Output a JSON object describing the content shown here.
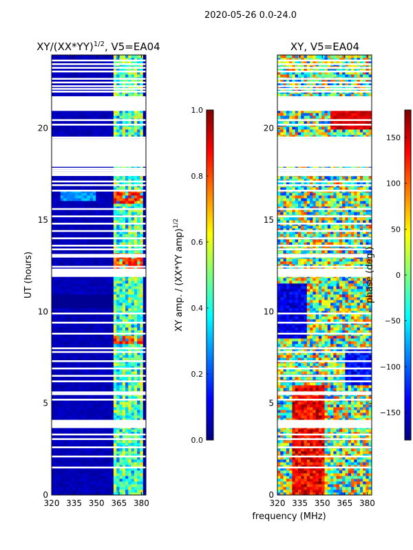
{
  "suptitle": "2020-05-26 0.0-24.0",
  "colors": {
    "jet": [
      "#00007f",
      "#0000ff",
      "#007fff",
      "#00ffff",
      "#7fff7f",
      "#ffff00",
      "#ff7f00",
      "#ff0000",
      "#7f0000"
    ],
    "gap": "#ffffff"
  },
  "shared_xlabel": "frequency (MHz)",
  "chart_data": [
    {
      "type": "heatmap",
      "title_base": "XY/(XX*YY)",
      "title_exp": "1/2",
      "title_suffix": ", V5=EA04",
      "ylabel": "UT (hours)",
      "xlim": [
        320,
        383
      ],
      "ylim": [
        0,
        24
      ],
      "xticks": [
        320,
        335,
        350,
        365,
        380
      ],
      "yticks": [
        0,
        5,
        10,
        15,
        20
      ],
      "colorbar": {
        "label_base": "XY amp. / (XX*YY amp)",
        "label_exp": "1/2",
        "range": [
          0.0,
          1.0
        ],
        "ticks": [
          "0.0",
          "0.2",
          "0.4",
          "0.6",
          "0.8",
          "1.0"
        ],
        "tick_values": [
          0.0,
          0.2,
          0.4,
          0.6,
          0.8,
          1.0
        ]
      },
      "pattern": "mostly near 0 below 362 MHz; bright vertical channels 362-382 MHz with values 0.3-0.7; hotspots near 16.3, 12.7 and 8.5 h"
    },
    {
      "type": "heatmap",
      "title": "XY, V5=EA04",
      "xlim": [
        320,
        383
      ],
      "ylim": [
        0,
        24
      ],
      "xticks": [
        320,
        335,
        350,
        365,
        380
      ],
      "yticks": [
        0,
        5,
        10,
        15,
        20
      ],
      "colorbar": {
        "label": "phase (deg.)",
        "range": [
          -180,
          180
        ],
        "ticks": [
          "−150",
          "−100",
          "−50",
          "0",
          "50",
          "100",
          "150"
        ],
        "tick_values": [
          -150,
          -100,
          -50,
          0,
          50,
          100,
          150
        ]
      },
      "pattern": "noisy phase; warm (≈+150) band 330-350 MHz below 6 h; cool blues 320-340 MHz near 9-11 h"
    }
  ],
  "flagged_hours": [
    1.5,
    2.1,
    2.6,
    3.05,
    3.3,
    3.7,
    3.8,
    3.9,
    4.0,
    5.2,
    5.5,
    5.6,
    6.2,
    6.5,
    6.9,
    7.3,
    7.8,
    8.0,
    8.8,
    9.4,
    9.9,
    11.95,
    12.0,
    12.1,
    12.15,
    12.3,
    12.45,
    13.0,
    13.1,
    13.4,
    13.6,
    14.0,
    14.4,
    14.8,
    15.2,
    15.6,
    16.6,
    16.9,
    17.1,
    17.45,
    17.5,
    17.6,
    17.7,
    17.8,
    18.0,
    18.3,
    18.5,
    18.7,
    18.9,
    19.0,
    19.1,
    19.2,
    19.3,
    19.4,
    19.5,
    20.2,
    20.45,
    21.0,
    21.1,
    21.2,
    21.3,
    21.4,
    21.5,
    21.6,
    21.7,
    22.0,
    22.15,
    22.3,
    22.5,
    22.7,
    23.1,
    23.3,
    23.5,
    23.7
  ]
}
